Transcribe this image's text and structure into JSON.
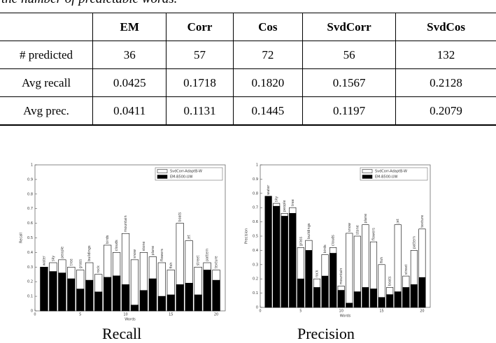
{
  "caption_fragment": "the number of predictable words.",
  "table": {
    "header": [
      "",
      "EM",
      "Corr",
      "Cos",
      "SvdCorr",
      "SvdCos"
    ],
    "rows": [
      [
        "# predicted",
        "36",
        "57",
        "72",
        "56",
        "132"
      ],
      [
        "Avg recall",
        "0.0425",
        "0.1718",
        "0.1820",
        "0.1567",
        "0.2128"
      ],
      [
        "Avg prec.",
        "0.0411",
        "0.1131",
        "0.1445",
        "0.1197",
        "0.2079"
      ]
    ]
  },
  "chart_data": [
    {
      "type": "bar",
      "x_label": "Words",
      "y_label": "Recall",
      "categories": [
        "water",
        "sky",
        "people",
        "tree",
        "grass",
        "buildings",
        "rock",
        "birds",
        "clouds",
        "mountain",
        "snow",
        "stone",
        "plane",
        "flowers",
        "fish",
        "boats",
        "jet",
        "street",
        "pattern",
        "texture"
      ],
      "series": [
        {
          "name": "SvdCorr-AdaptB-W",
          "color": "#ffffff",
          "values": [
            0.3,
            0.33,
            0.35,
            0.3,
            0.28,
            0.33,
            0.25,
            0.45,
            0.4,
            0.53,
            0.35,
            0.4,
            0.37,
            0.33,
            0.28,
            0.6,
            0.48,
            0.3,
            0.33,
            0.28
          ]
        },
        {
          "name": "EM-B500-UW",
          "color": "#000000",
          "values": [
            0.3,
            0.27,
            0.26,
            0.22,
            0.15,
            0.21,
            0.13,
            0.23,
            0.24,
            0.18,
            0.04,
            0.14,
            0.22,
            0.1,
            0.11,
            0.18,
            0.19,
            0.11,
            0.28,
            0.21
          ]
        }
      ],
      "xlim": [
        0,
        21
      ],
      "xticks": [
        0,
        5,
        10,
        15,
        20
      ],
      "ylim": [
        0,
        1
      ],
      "yticks": [
        0,
        0.1,
        0.2,
        0.3,
        0.4,
        0.5,
        0.6,
        0.7,
        0.8,
        0.9,
        1
      ],
      "legend": "upper right"
    },
    {
      "type": "bar",
      "x_label": "Words",
      "y_label": "Precision",
      "categories": [
        "water",
        "sky",
        "people",
        "tree",
        "grass",
        "buildings",
        "rock",
        "birds",
        "clouds",
        "mountain",
        "snow",
        "stone",
        "plane",
        "flowers",
        "fish",
        "boats",
        "jet",
        "street",
        "pattern",
        "texture"
      ],
      "series": [
        {
          "name": "SvdCorr-AdaptB-W",
          "color": "#ffffff",
          "values": [
            0.78,
            0.73,
            0.66,
            0.7,
            0.42,
            0.47,
            0.2,
            0.37,
            0.42,
            0.15,
            0.52,
            0.5,
            0.58,
            0.46,
            0.3,
            0.14,
            0.58,
            0.22,
            0.4,
            0.55
          ]
        },
        {
          "name": "EM-B500-UW",
          "color": "#000000",
          "values": [
            0.78,
            0.71,
            0.64,
            0.66,
            0.2,
            0.4,
            0.14,
            0.22,
            0.38,
            0.12,
            0.03,
            0.11,
            0.14,
            0.13,
            0.07,
            0.09,
            0.11,
            0.14,
            0.16,
            0.21
          ]
        }
      ],
      "xlim": [
        0,
        21
      ],
      "xticks": [
        0,
        5,
        10,
        15,
        20
      ],
      "ylim": [
        0,
        1
      ],
      "yticks": [
        0,
        0.1,
        0.2,
        0.3,
        0.4,
        0.5,
        0.6,
        0.7,
        0.8,
        0.9,
        1
      ],
      "legend": "upper right"
    }
  ],
  "figure_captions": [
    "Recall",
    "Precision"
  ]
}
